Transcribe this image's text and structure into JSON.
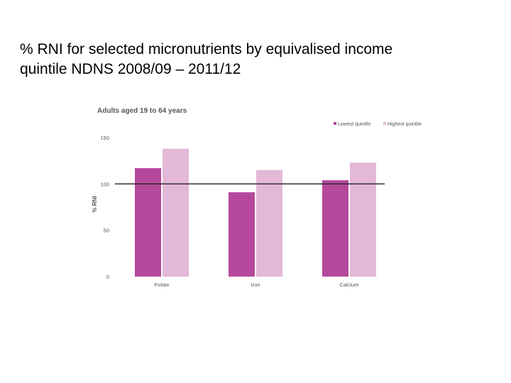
{
  "slide": {
    "title_line1": "% RNI for selected micronutrients by equivalised income",
    "title_line2": "quintile NDNS 2008/09 – 2011/12"
  },
  "chart_data": {
    "type": "bar",
    "title": "Adults aged 19 to 64 years",
    "ylabel": "% RNI",
    "xlabel": "",
    "categories": [
      "Folate",
      "Iron",
      "Calcium"
    ],
    "series": [
      {
        "name": "Lowest quintile",
        "color": "#b5489b",
        "values": [
          117,
          91,
          104
        ]
      },
      {
        "name": "Highest quintile",
        "color": "#e3b8d8",
        "values": [
          138,
          115,
          123
        ]
      }
    ],
    "ylim": [
      0,
      150
    ],
    "yticks": [
      0,
      50,
      100,
      150
    ],
    "reference_line": 100,
    "grid": false,
    "legend_position": "top-right"
  }
}
